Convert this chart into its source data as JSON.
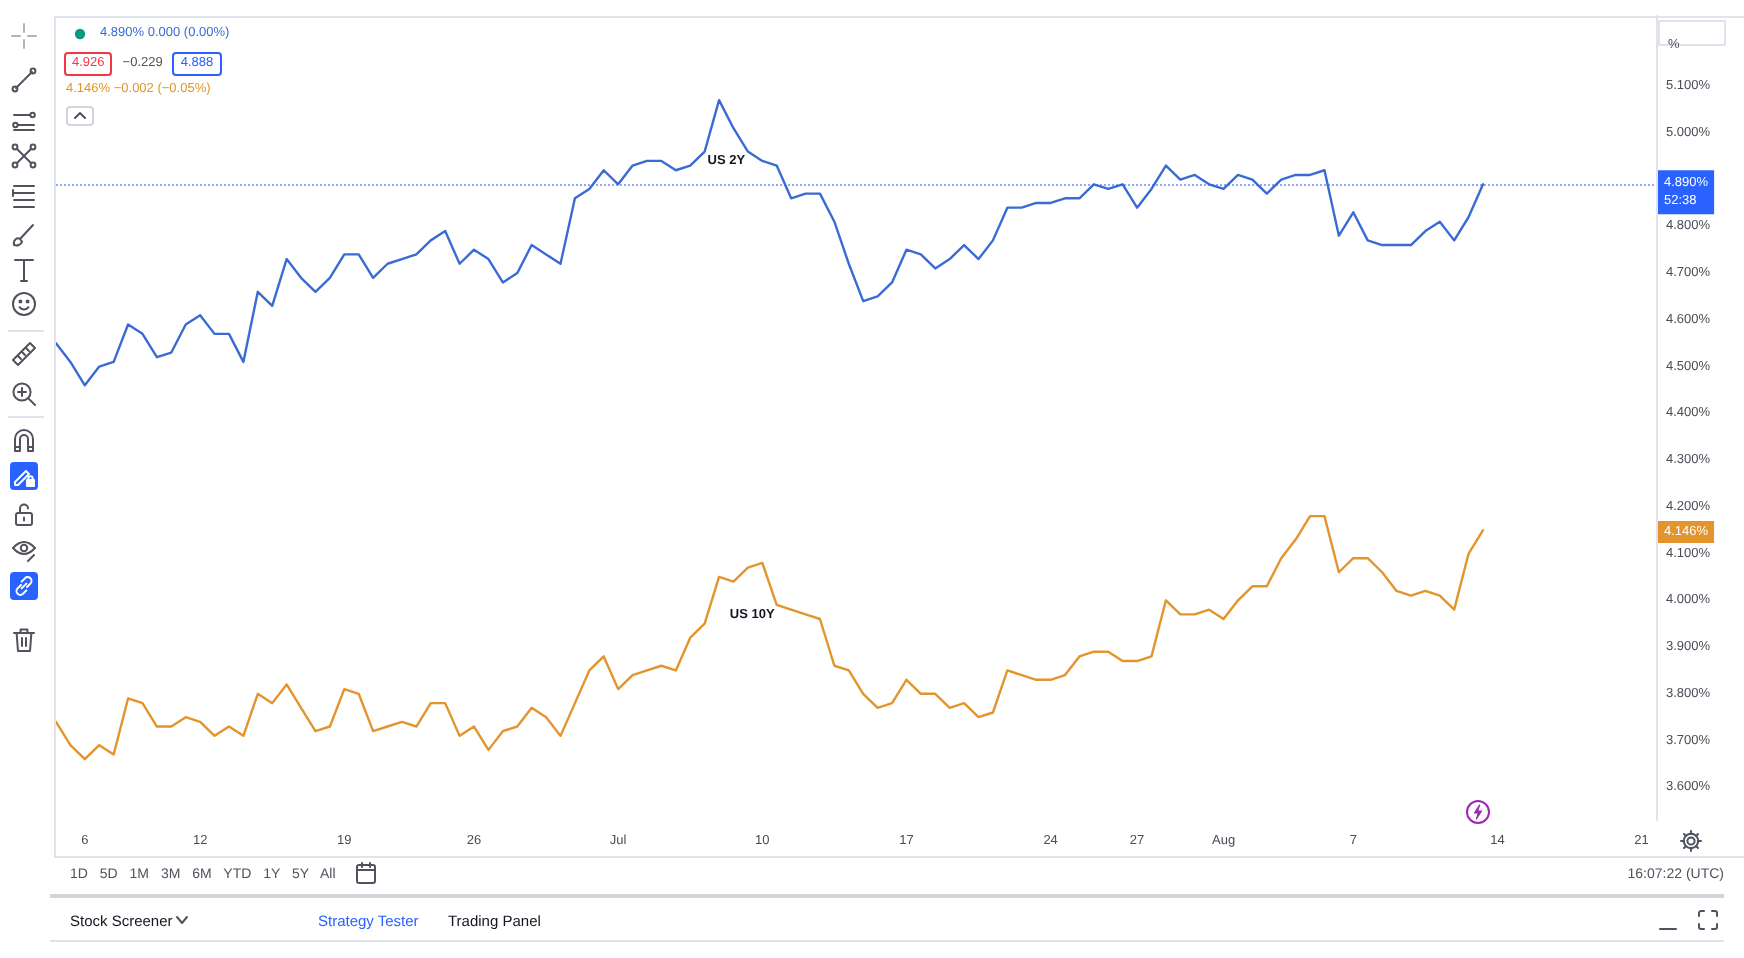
{
  "chart_data": {
    "type": "line",
    "ylabel": "%",
    "categories": [
      null,
      null,
      "6",
      null,
      null,
      null,
      null,
      null,
      null,
      null,
      "12",
      null,
      null,
      null,
      null,
      null,
      null,
      null,
      null,
      null,
      "19",
      null,
      null,
      null,
      null,
      null,
      null,
      null,
      null,
      "26",
      null,
      null,
      null,
      null,
      null,
      null,
      null,
      null,
      null,
      "Jul",
      null,
      null,
      null,
      null,
      null,
      null,
      null,
      null,
      null,
      "10",
      null,
      null,
      null,
      null,
      null,
      null,
      null,
      null,
      null,
      "17",
      null,
      null,
      null,
      null,
      null,
      null,
      null,
      null,
      null,
      "24",
      null,
      null,
      null,
      null,
      null,
      "27",
      null,
      null,
      null,
      null,
      null,
      "Aug",
      null,
      null,
      null,
      null,
      null,
      null,
      null,
      null,
      "7",
      null,
      null,
      null,
      null,
      null,
      null,
      null,
      null,
      null,
      "14",
      null,
      null,
      null,
      null,
      null,
      null,
      null,
      null,
      null,
      "21",
      null
    ],
    "series": [
      {
        "name": "US 2Y",
        "color": "#3a6bd4",
        "values": [
          4.55,
          4.51,
          4.46,
          4.5,
          4.51,
          4.59,
          4.57,
          4.52,
          4.53,
          4.59,
          4.61,
          4.57,
          4.57,
          4.51,
          4.66,
          4.63,
          4.73,
          4.69,
          4.66,
          4.69,
          4.74,
          4.74,
          4.69,
          4.72,
          4.73,
          4.74,
          4.77,
          4.79,
          4.72,
          4.75,
          4.73,
          4.68,
          4.7,
          4.76,
          4.74,
          4.72,
          4.86,
          4.88,
          4.92,
          4.89,
          4.93,
          4.94,
          4.94,
          4.92,
          4.93,
          4.96,
          5.07,
          5.01,
          4.96,
          4.94,
          4.93,
          4.86,
          4.87,
          4.87,
          4.81,
          4.72,
          4.64,
          4.65,
          4.68,
          4.75,
          4.74,
          4.71,
          4.73,
          4.76,
          4.73,
          4.77,
          4.84,
          4.84,
          4.85,
          4.85,
          4.86,
          4.86,
          4.89,
          4.88,
          4.89,
          4.84,
          4.88,
          4.93,
          4.9,
          4.91,
          4.89,
          4.88,
          4.91,
          4.9,
          4.87,
          4.9,
          4.91,
          4.91,
          4.92,
          4.78,
          4.83,
          4.77,
          4.76,
          4.76,
          4.76,
          4.79,
          4.81,
          4.77,
          4.82,
          4.89,
          null,
          null,
          null,
          null,
          null,
          null,
          null,
          null,
          null,
          null,
          null,
          null
        ]
      },
      {
        "name": "US 10Y",
        "color": "#e3942c",
        "values": [
          3.74,
          3.69,
          3.66,
          3.69,
          3.67,
          3.79,
          3.78,
          3.73,
          3.73,
          3.75,
          3.74,
          3.71,
          3.73,
          3.71,
          3.8,
          3.78,
          3.82,
          3.77,
          3.72,
          3.73,
          3.81,
          3.8,
          3.72,
          3.73,
          3.74,
          3.73,
          3.78,
          3.78,
          3.71,
          3.73,
          3.68,
          3.72,
          3.73,
          3.77,
          3.75,
          3.71,
          3.78,
          3.85,
          3.88,
          3.81,
          3.84,
          3.85,
          3.86,
          3.85,
          3.92,
          3.95,
          4.05,
          4.04,
          4.07,
          4.08,
          3.99,
          3.98,
          3.97,
          3.96,
          3.86,
          3.85,
          3.8,
          3.77,
          3.78,
          3.83,
          3.8,
          3.8,
          3.77,
          3.78,
          3.75,
          3.76,
          3.85,
          3.84,
          3.83,
          3.83,
          3.84,
          3.88,
          3.89,
          3.89,
          3.87,
          3.87,
          3.88,
          4,
          3.97,
          3.97,
          3.98,
          3.96,
          4,
          4.03,
          4.03,
          4.09,
          4.13,
          4.18,
          4.18,
          4.06,
          4.09,
          4.09,
          4.06,
          4.02,
          4.01,
          4.02,
          4.01,
          3.98,
          4.1,
          4.15,
          null,
          null,
          null,
          null,
          null,
          null,
          null,
          null,
          null,
          null,
          null,
          null
        ]
      }
    ],
    "ylim": [
      3.53,
      5.25
    ],
    "yticks": [
      {
        "value": 3.6,
        "label": "3.600%"
      },
      {
        "value": 3.7,
        "label": "3.700%"
      },
      {
        "value": 3.8,
        "label": "3.800%"
      },
      {
        "value": 3.9,
        "label": "3.900%"
      },
      {
        "value": 4.0,
        "label": "4.000%"
      },
      {
        "value": 4.1,
        "label": "4.100%"
      },
      {
        "value": 4.2,
        "label": "4.200%"
      },
      {
        "value": 4.3,
        "label": "4.300%"
      },
      {
        "value": 4.4,
        "label": "4.400%"
      },
      {
        "value": 4.5,
        "label": "4.500%"
      },
      {
        "value": 4.6,
        "label": "4.600%"
      },
      {
        "value": 4.7,
        "label": "4.700%"
      },
      {
        "value": 4.8,
        "label": "4.800%"
      },
      {
        "value": 5.0,
        "label": "5.000%"
      },
      {
        "value": 5.1,
        "label": "5.100%"
      }
    ],
    "ref_lines": [
      {
        "axis": "y",
        "value": 4.89,
        "label": "4.890%",
        "color": "#2962ff",
        "line_style": "dotted"
      }
    ],
    "annotations": [
      "4.890% 0.000 (0.00%)",
      "4.926",
      "−0.229",
      "4.888",
      "4.146% −0.002 (−0.05%)",
      {
        "text": "4.146%",
        "y": 4.146
      },
      "52:38",
      "1D 5D 1M 3M 6M YTD 1Y 5Y All",
      "16:07:22 (UTC)",
      "Stock Screener",
      "Strategy Tester",
      "Trading Panel"
    ],
    "grid": false,
    "marker": "none",
    "line_style": "solid"
  }
}
